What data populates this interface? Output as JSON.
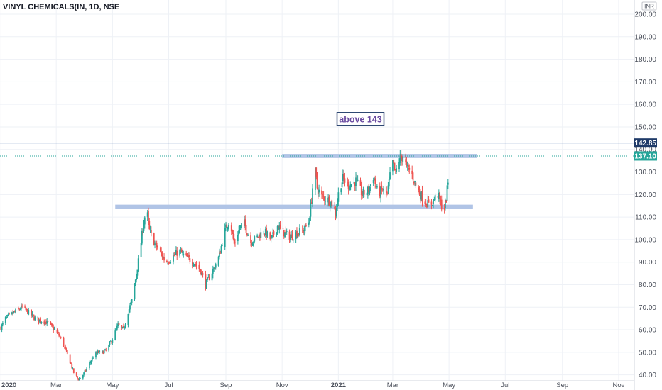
{
  "header": {
    "symbol_line": "VINYL CHEMICALS(IN, 1D, NSE"
  },
  "currency": "INR",
  "colors": {
    "up": "#26a69a",
    "down": "#ef5350",
    "grid": "#eef1f6",
    "axis_text": "#4a4f5a",
    "price_line": "#2962ff",
    "last_price": "#26a69a",
    "zone": "#b0c4e6",
    "annotation_border": "#1f3a68",
    "annotation_text": "#6a4ba0"
  },
  "annotation": {
    "text": "above 143",
    "price": 153.5,
    "date": "2021-01-25"
  },
  "chart_data": {
    "type": "candlestick",
    "title": "VINYL CHEMICALS(IN, 1D, NSE",
    "xlabel": "",
    "ylabel": "",
    "ylim": [
      38,
      205
    ],
    "xlim": [
      "2019-12-31",
      "2021-11-18"
    ],
    "grid": true,
    "x_ticks": [
      {
        "date": "2020-01-01",
        "label": "2020"
      },
      {
        "date": "2020-03-01",
        "label": "Mar"
      },
      {
        "date": "2020-05-01",
        "label": "May"
      },
      {
        "date": "2020-07-01",
        "label": "Jul"
      },
      {
        "date": "2020-09-01",
        "label": "Sep"
      },
      {
        "date": "2020-11-01",
        "label": "Nov"
      },
      {
        "date": "2021-01-01",
        "label": "2021"
      },
      {
        "date": "2021-03-01",
        "label": "Mar"
      },
      {
        "date": "2021-05-01",
        "label": "May"
      },
      {
        "date": "2021-07-01",
        "label": "Jul"
      },
      {
        "date": "2021-09-01",
        "label": "Sep"
      },
      {
        "date": "2021-11-01",
        "label": "Nov"
      }
    ],
    "y_ticks": [
      {
        "value": 200,
        "label": "200.00"
      },
      {
        "value": 190,
        "label": "190.00"
      },
      {
        "value": 180,
        "label": "180.00"
      },
      {
        "value": 170,
        "label": "170.00"
      },
      {
        "value": 160,
        "label": "160.00"
      },
      {
        "value": 150,
        "label": "150.00"
      },
      {
        "value": 140,
        "label": "140.00"
      },
      {
        "value": 130,
        "label": "130.00"
      },
      {
        "value": 120,
        "label": "120.00"
      },
      {
        "value": 110,
        "label": "110.00"
      },
      {
        "value": 100,
        "label": "100.00"
      },
      {
        "value": 90,
        "label": "90.00"
      },
      {
        "value": 80,
        "label": "80.00"
      },
      {
        "value": 70,
        "label": "70.00"
      },
      {
        "value": 60,
        "label": "60.00"
      },
      {
        "value": 50,
        "label": "50.00"
      },
      {
        "value": 40,
        "label": "40.00"
      }
    ],
    "horizontal_line": {
      "value": 142.85,
      "label": "142.85"
    },
    "last_price": {
      "value": 137.1,
      "label": "137.10"
    },
    "zones": [
      {
        "from": "2020-05-04",
        "to": "2021-05-27",
        "low": 113.5,
        "high": 115.5
      },
      {
        "from": "2020-11-01",
        "to": "2021-05-31",
        "low": 136.2,
        "high": 138.0
      }
    ],
    "price_path": [
      [
        "2020-01-01",
        61
      ],
      [
        "2020-01-06",
        65
      ],
      [
        "2020-01-13",
        67
      ],
      [
        "2020-01-20",
        69
      ],
      [
        "2020-01-24",
        70
      ],
      [
        "2020-01-30",
        68
      ],
      [
        "2020-02-07",
        65
      ],
      [
        "2020-02-14",
        64
      ],
      [
        "2020-02-21",
        63
      ],
      [
        "2020-02-28",
        60
      ],
      [
        "2020-03-05",
        57
      ],
      [
        "2020-03-10",
        52
      ],
      [
        "2020-03-15",
        47
      ],
      [
        "2020-03-20",
        41
      ],
      [
        "2020-03-25",
        38
      ],
      [
        "2020-03-30",
        40
      ],
      [
        "2020-04-05",
        44
      ],
      [
        "2020-04-10",
        48
      ],
      [
        "2020-04-15",
        50
      ],
      [
        "2020-04-20",
        50
      ],
      [
        "2020-04-25",
        51
      ],
      [
        "2020-05-01",
        56
      ],
      [
        "2020-05-07",
        62
      ],
      [
        "2020-05-13",
        60
      ],
      [
        "2020-05-18",
        68
      ],
      [
        "2020-05-23",
        74
      ],
      [
        "2020-05-27",
        85
      ],
      [
        "2020-05-31",
        96
      ],
      [
        "2020-06-04",
        108
      ],
      [
        "2020-06-07",
        114
      ],
      [
        "2020-06-10",
        104
      ],
      [
        "2020-06-16",
        98
      ],
      [
        "2020-06-22",
        94
      ],
      [
        "2020-06-28",
        90
      ],
      [
        "2020-07-05",
        92
      ],
      [
        "2020-07-12",
        95
      ],
      [
        "2020-07-20",
        92
      ],
      [
        "2020-07-28",
        90
      ],
      [
        "2020-08-05",
        86
      ],
      [
        "2020-08-10",
        80
      ],
      [
        "2020-08-15",
        84
      ],
      [
        "2020-08-20",
        88
      ],
      [
        "2020-08-25",
        93
      ],
      [
        "2020-08-30",
        103
      ],
      [
        "2020-09-05",
        109
      ],
      [
        "2020-09-10",
        98
      ],
      [
        "2020-09-15",
        104
      ],
      [
        "2020-09-20",
        108
      ],
      [
        "2020-09-28",
        99
      ],
      [
        "2020-10-05",
        101
      ],
      [
        "2020-10-12",
        104
      ],
      [
        "2020-10-20",
        100
      ],
      [
        "2020-10-27",
        106
      ],
      [
        "2020-11-03",
        103
      ],
      [
        "2020-11-10",
        101
      ],
      [
        "2020-11-17",
        103
      ],
      [
        "2020-11-24",
        104
      ],
      [
        "2020-11-30",
        108
      ],
      [
        "2020-12-03",
        118
      ],
      [
        "2020-12-06",
        133
      ],
      [
        "2020-12-09",
        123
      ],
      [
        "2020-12-14",
        119
      ],
      [
        "2020-12-20",
        118
      ],
      [
        "2020-12-25",
        116
      ],
      [
        "2020-12-29",
        112
      ],
      [
        "2021-01-02",
        123
      ],
      [
        "2021-01-06",
        127
      ],
      [
        "2021-01-12",
        124
      ],
      [
        "2021-01-20",
        126
      ],
      [
        "2021-01-27",
        120
      ],
      [
        "2021-02-03",
        122
      ],
      [
        "2021-02-08",
        128
      ],
      [
        "2021-02-13",
        120
      ],
      [
        "2021-02-18",
        122
      ],
      [
        "2021-02-23",
        120
      ],
      [
        "2021-02-26",
        128
      ],
      [
        "2021-03-01",
        134
      ],
      [
        "2021-03-04",
        129
      ],
      [
        "2021-03-07",
        135
      ],
      [
        "2021-03-12",
        137
      ],
      [
        "2021-03-16",
        132
      ],
      [
        "2021-03-21",
        130
      ],
      [
        "2021-03-26",
        124
      ],
      [
        "2021-03-31",
        120
      ],
      [
        "2021-04-05",
        117
      ],
      [
        "2021-04-10",
        115
      ],
      [
        "2021-04-15",
        118
      ],
      [
        "2021-04-19",
        120
      ],
      [
        "2021-04-23",
        115
      ],
      [
        "2021-04-26",
        114
      ],
      [
        "2021-04-28",
        118
      ],
      [
        "2021-04-30",
        126
      ],
      [
        "2021-05-02",
        137.1
      ]
    ]
  }
}
